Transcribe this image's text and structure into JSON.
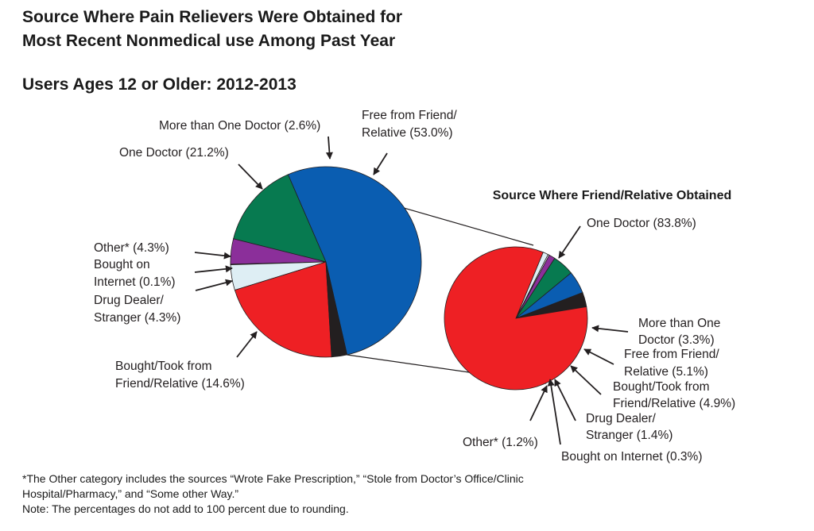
{
  "titles": {
    "line1": "Source Where Pain Relievers Were Obtained for",
    "line2": "Most Recent Nonmedical use Among Past Year",
    "line3": "Users Ages 12 or Older: 2012-2013"
  },
  "footnotes": {
    "line1": "*The Other category includes the sources “Wrote Fake Prescription,” “Stole from Doctor’s Office/Clinic",
    "line2": "Hospital/Pharmacy,” and “Some other Way.”",
    "line3": "Note: The percentages do not add to 100 percent due to rounding."
  },
  "colors": {
    "red": "#ee2024",
    "black": "#231f20",
    "blue": "#0a5db1",
    "green": "#077a50",
    "purple": "#8b2f9a",
    "lightblue": "#deeef4",
    "white": "#ffffff"
  },
  "chart_data": [
    {
      "type": "pie",
      "title": "",
      "slices": [
        {
          "label": "Free from Friend/Relative (53.0%)",
          "label_lines": [
            "Free from Friend/",
            "Relative (53.0%)"
          ],
          "value": 53.0,
          "color": "#0a5db1"
        },
        {
          "label": "Bought/Took from Friend/Relative (14.6%)",
          "label_lines": [
            "Bought/Took from",
            "Friend/Relative (14.6%)"
          ],
          "value": 14.6,
          "color": "#077a50"
        },
        {
          "label": "Drug Dealer/Stranger (4.3%)",
          "label_lines": [
            "Drug Dealer/",
            "Stranger (4.3%)"
          ],
          "value": 4.3,
          "color": "#8b2f9a"
        },
        {
          "label": "Bought on Internet (0.1%)",
          "label_lines": [
            "Bought on",
            "Internet (0.1%)"
          ],
          "value": 0.1,
          "color": "#ffffff"
        },
        {
          "label": "Other* (4.3%)",
          "label_lines": [
            "Other* (4.3%)"
          ],
          "value": 4.3,
          "color": "#deeef4"
        },
        {
          "label": "One Doctor (21.2%)",
          "label_lines": [
            "One Doctor (21.2%)"
          ],
          "value": 21.2,
          "color": "#ee2024"
        },
        {
          "label": "More than One Doctor (2.6%)",
          "label_lines": [
            "More than One Doctor (2.6%)"
          ],
          "value": 2.6,
          "color": "#231f20"
        }
      ]
    },
    {
      "type": "pie",
      "title": "Source Where Friend/Relative Obtained",
      "slices": [
        {
          "label": "More than One Doctor (3.3%)",
          "label_lines": [
            "More than One",
            "Doctor (3.3%)"
          ],
          "value": 3.3,
          "color": "#231f20"
        },
        {
          "label": "Free from Friend/Relative (5.1%)",
          "label_lines": [
            "Free from Friend/",
            "Relative (5.1%)"
          ],
          "value": 5.1,
          "color": "#0a5db1"
        },
        {
          "label": "Bought/Took from Friend/Relative (4.9%)",
          "label_lines": [
            "Bought/Took from",
            "Friend/Relative (4.9%)"
          ],
          "value": 4.9,
          "color": "#077a50"
        },
        {
          "label": "Drug Dealer/Stranger (1.4%)",
          "label_lines": [
            "Drug Dealer/",
            "Stranger (1.4%)"
          ],
          "value": 1.4,
          "color": "#8b2f9a"
        },
        {
          "label": "Bought on Internet (0.3%)",
          "label_lines": [
            "Bought on Internet (0.3%)"
          ],
          "value": 0.3,
          "color": "#ffffff"
        },
        {
          "label": "Other* (1.2%)",
          "label_lines": [
            "Other* (1.2%)"
          ],
          "value": 1.2,
          "color": "#deeef4"
        },
        {
          "label": "One Doctor (83.8%)",
          "label_lines": [
            "One Doctor (83.8%)"
          ],
          "value": 83.8,
          "color": "#ee2024"
        }
      ]
    }
  ]
}
